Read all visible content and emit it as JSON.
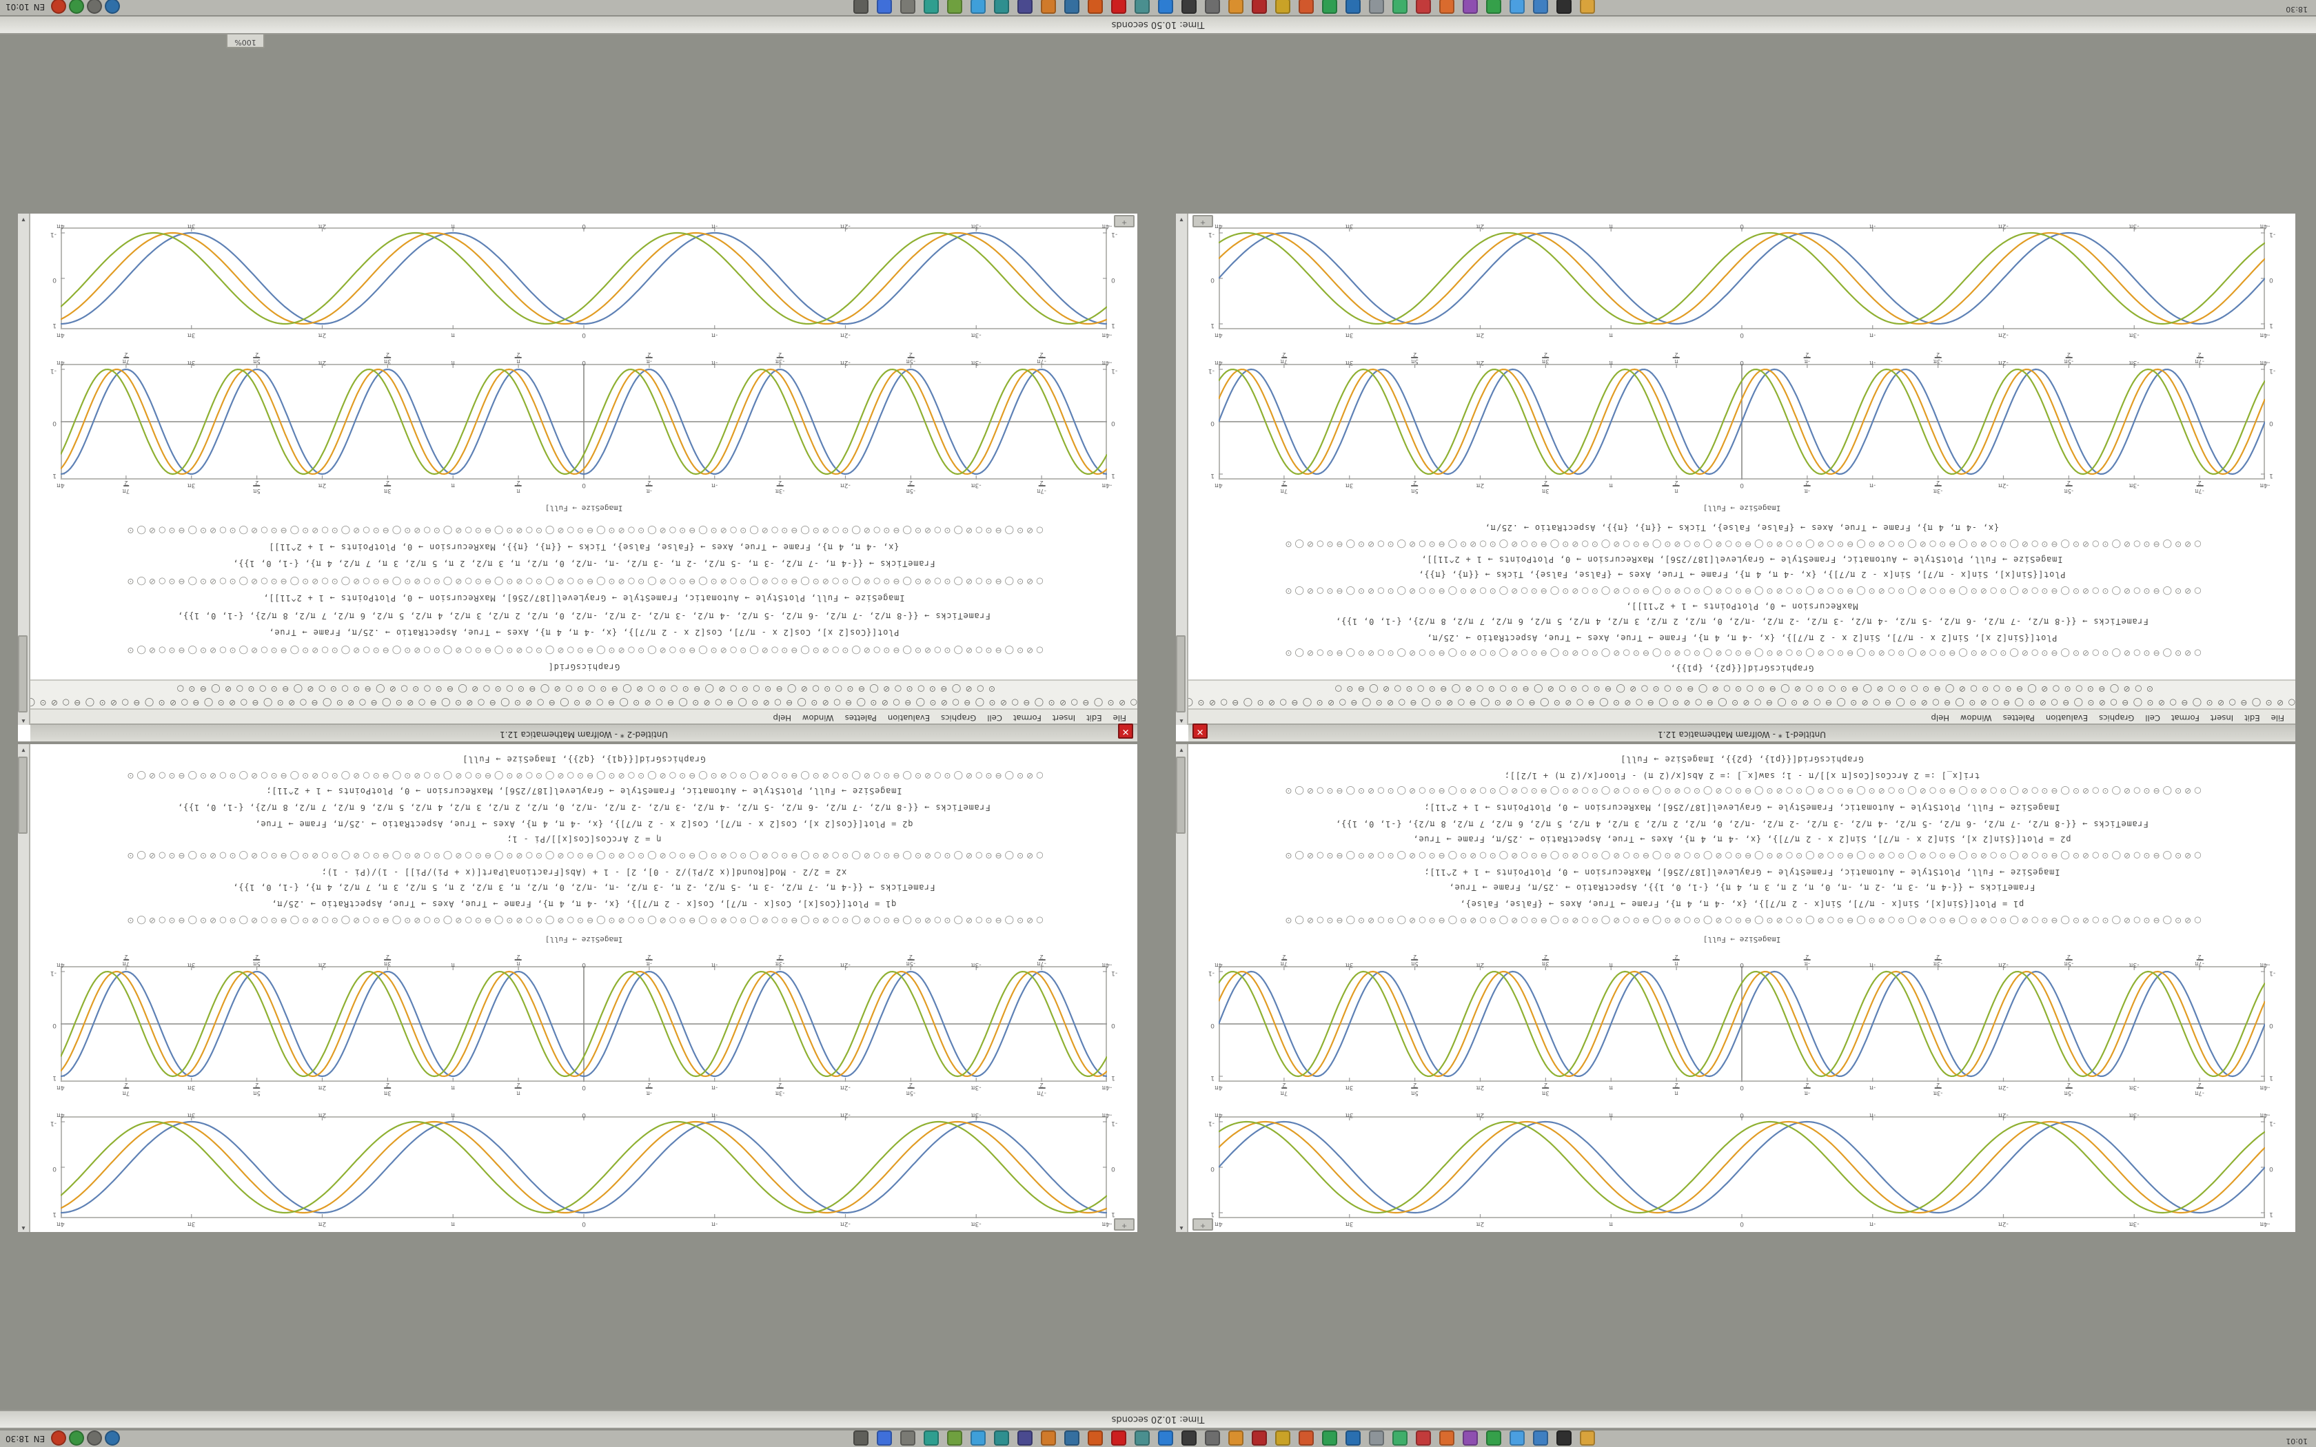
{
  "desktop": {
    "background": "#8f9089",
    "bar_top_text": "Time: 10.20 seconds",
    "bar_bottom_text": "Time: 10.50 seconds",
    "zoom_chip": "100%",
    "top_panel": {
      "left_text": "10:01",
      "lang": "EN",
      "clock": "18:30"
    },
    "bottom_panel": {
      "left_text": "18:30",
      "lang": "EN",
      "clock": "10:01"
    },
    "panel_icons": [
      {
        "name": "files",
        "color": "#d9a33c"
      },
      {
        "name": "terminal",
        "color": "#2f2f2f"
      },
      {
        "name": "browser",
        "color": "#3f7fc1"
      },
      {
        "name": "mail",
        "color": "#4b9fe0"
      },
      {
        "name": "chat",
        "color": "#35a04a"
      },
      {
        "name": "music",
        "color": "#8e4fb0"
      },
      {
        "name": "photos",
        "color": "#d96b2e"
      },
      {
        "name": "video",
        "color": "#c23b3b"
      },
      {
        "name": "editor",
        "color": "#3fae6a"
      },
      {
        "name": "calculator",
        "color": "#8d9499"
      },
      {
        "name": "office-writer",
        "color": "#2a6fb0"
      },
      {
        "name": "office-calc",
        "color": "#2f9e52"
      },
      {
        "name": "office-impress",
        "color": "#d1582c"
      },
      {
        "name": "office-draw",
        "color": "#c9a227"
      },
      {
        "name": "pdf-viewer",
        "color": "#b02a2a"
      },
      {
        "name": "archive-manager",
        "color": "#d98f2e"
      },
      {
        "name": "gimp",
        "color": "#6d6d6d"
      },
      {
        "name": "inkscape",
        "color": "#3b3b3b"
      },
      {
        "name": "code-editor",
        "color": "#2d7dd2"
      },
      {
        "name": "cad",
        "color": "#4a8f8f"
      },
      {
        "name": "wolfram",
        "color": "#cc1f1f"
      },
      {
        "name": "matlab",
        "color": "#d15a1e"
      },
      {
        "name": "python",
        "color": "#356f9f"
      },
      {
        "name": "jupyter",
        "color": "#d07a2a"
      },
      {
        "name": "vm",
        "color": "#4a4a8f"
      },
      {
        "name": "remote-desktop",
        "color": "#2f8f8f"
      },
      {
        "name": "cloud-sync",
        "color": "#3f9fd9"
      },
      {
        "name": "backup",
        "color": "#6fa03f"
      },
      {
        "name": "system-monitor",
        "color": "#2f9e8f"
      },
      {
        "name": "settings",
        "color": "#7a7a74"
      },
      {
        "name": "help",
        "color": "#3f6fd9"
      },
      {
        "name": "trash",
        "color": "#5f5f5a"
      }
    ],
    "tray_icons": [
      {
        "name": "network",
        "color": "#2f6fa8"
      },
      {
        "name": "volume",
        "color": "#6d6d68"
      },
      {
        "name": "keyboard-layout",
        "color": "#3a9441"
      },
      {
        "name": "notifications",
        "color": "#c23b22"
      }
    ]
  },
  "menu": {
    "items": [
      "File",
      "Edit",
      "Insert",
      "Format",
      "Cell",
      "Graphics",
      "Evaluation",
      "Palettes",
      "Window",
      "Help"
    ]
  },
  "windows_chrome": {
    "title_left": "Untitled-1 * - Wolfram Mathematica 12.1",
    "title_right": "Untitled-2 * - Wolfram Mathematica 12.1",
    "close_glyph": "✕"
  },
  "toolbar": {
    "row1": "○⊘⊙◯⊖○⊘⊙◯⊖○⊘⊙◯⊖○⊘⊙◯⊖○⊘⊙◯⊖○⊘⊙◯⊖○⊘⊙◯⊖○⊘⊙◯⊖○⊘⊙◯⊖○⊘⊙◯⊖○⊘⊙◯⊖○⊘⊙◯⊖○⊘⊙◯⊖○⊘⊙◯⊖○⊘⊙◯⊖○⊘⊙◯⊖○⊘⊙◯⊖○⊘⊙◯⊖○⊘⊙◯⊖○⊘⊙◯⊖",
    "row2": "⊙○⊘◯⊖⊙○⊙○⊘◯⊖⊙○⊙○⊘◯⊖⊙○⊙○⊘◯⊖⊙○⊙○⊘◯⊖⊙○⊙○⊘◯⊖⊙○⊙○⊘◯⊖⊙○⊙○⊘◯⊖⊙○⊙○⊘◯⊖⊙○⊙○⊘◯⊖⊙○"
  },
  "notebook": {
    "caption": "ImageSize → Full]",
    "chip_glyph": "+",
    "sym_row": "○⊘⊙◯⊖⊙○⊘◯⊙○⊘⊙◯⊖⊙○⊘◯⊙○⊘⊙◯⊖⊙○⊘◯⊙○⊘⊙◯⊖⊙○⊘◯⊙○⊘⊙◯⊖⊙○⊘◯⊙○⊘⊙◯⊖⊙○⊘◯⊙○⊘⊙◯⊖⊙○⊘◯⊙○⊘⊙◯⊖⊙○⊘◯⊙○⊘⊙◯⊖⊙○⊘◯⊙"
  },
  "code_cells": {
    "left_top": [
      "§SYM§",
      "p1 = Plot[{Sin[x], Sin[x - π/7], Sin[x - 2 π/7]}, {x, -4 π, 4 π}, Frame → True, Axes → {False, False},",
      "FrameTicks → {{-4 π, -3 π, -2 π, -π, 0, π, 2 π, 3 π, 4 π}, {-1, 0, 1}}, AspectRatio → .25/π, Frame → True,",
      "ImageSize → Full, PlotStyle → Automatic, FrameStyle → GrayLevel[187/256], MaxRecursion → 0, PlotPoints → 1 + 2^11];",
      "§SYM§",
      "p2 = Plot[{Sin[2 x], Sin[2 x - π/7], Sin[2 x - 2 π/7]}, {x, -4 π, 4 π}, Axes → True, AspectRatio → .25/π, Frame → True,",
      "FrameTicks → {{-8 π/2, -7 π/2, -6 π/2, -5 π/2, -4 π/2, -3 π/2, -2 π/2, -π/2, 0, π/2, 2 π/2, 3 π/2, 4 π/2, 5 π/2, 6 π/2, 7 π/2, 8 π/2}, {-1, 0, 1}},",
      "ImageSize → Full, PlotStyle → Automatic, FrameStyle → GrayLevel[187/256], MaxRecursion → 0, PlotPoints → 1 + 2^11];",
      "§SYM§",
      "tri[x_] := 2 ArcCos[Cos[π x]]/π - 1;   saw[x_] := 2 Abs[x/(2 π) - Floor[x/(2 π) + 1/2]];",
      "GraphicsGrid[{{p1}, {p2}}, ImageSize → Full]"
    ],
    "left_bottom": [
      "GraphicsGrid[{{p2}, {p1}},",
      "§SYM§",
      "Plot[{Sin[2 x], Sin[2 x - π/7], Sin[2 x - 2 π/7]}, {x, -4 π, 4 π}, Frame → True, Axes → True, AspectRatio → .25/π,",
      "FrameTicks → {{-8 π/2, -7 π/2, -6 π/2, -5 π/2, -4 π/2, -3 π/2, -2 π/2, -π/2, 0, π/2, 2 π/2, 3 π/2, 4 π/2, 5 π/2, 6 π/2, 7 π/2, 8 π/2}, {-1, 0, 1}},",
      "MaxRecursion → 0, PlotPoints → 1 + 2^11]],",
      "§SYM§",
      "Plot[{Sin[x], Sin[x - π/7], Sin[x - 2 π/7]}, {x, -4 π, 4 π}, Frame → True, Axes → {False, False}, Ticks → {{π}, {π}},",
      "ImageSize → Full, PlotStyle → Automatic, FrameStyle → GrayLevel[187/256], MaxRecursion → 0, PlotPoints → 1 + 2^11]],",
      "§SYM§",
      "{x, -4 π, 4 π}, Frame → True, Axes → {False, False}, Ticks → {{π}, {π}}, AspectRatio → .25/π,"
    ],
    "right_top": [
      "§SYM§",
      "q1 = Plot[{Cos[x], Cos[x - π/7], Cos[x - 2 π/7]}, {x, -4 π, 4 π}, Frame → True, Axes → True, AspectRatio → .25/π,",
      "FrameTicks → {{-4 π, -7 π/2, -3 π, -5 π/2, -2 π, -3 π/2, -π, -π/2, 0, π/2, π, 3 π/2, 2 π, 5 π/2, 3 π, 7 π/2, 4 π}, {-1, 0, 1}},",
      "x2 = 2/2 - Mod[Round[(x 2/Pi)/2 - 0], 2] - 1 + (Abs[FractionalPart[(x + Pi)/Pi]] - 1)/(Pi - 1);",
      "§SYM§",
      "η = 2 ArcCos[Cos[x]]/Pi - 1;",
      "q2 = Plot[{Cos[2 x], Cos[2 x - π/7], Cos[2 x - 2 π/7]}, {x, -4 π, 4 π}, Axes → True, AspectRatio → .25/π, Frame → True,",
      "FrameTicks → {{-8 π/2, -7 π/2, -6 π/2, -5 π/2, -4 π/2, -3 π/2, -2 π/2, -π/2, 0, π/2, 2 π/2, 3 π/2, 4 π/2, 5 π/2, 6 π/2, 7 π/2, 8 π/2}, {-1, 0, 1}},",
      "ImageSize → Full, PlotStyle → Automatic, FrameStyle → GrayLevel[187/256], MaxRecursion → 0, PlotPoints → 1 + 2^11];",
      "§SYM§",
      "GraphicsGrid[{{q1}, {q2}}, ImageSize → Full]"
    ],
    "right_bottom": [
      "GraphicsGrid[",
      "§SYM§",
      "Plot[{Cos[2 x], Cos[2 x - π/7], Cos[2 x - 2 π/7]}, {x, -4 π, 4 π}, Axes → True, AspectRatio → .25/π, Frame → True,",
      "FrameTicks → {{-8 π/2, -7 π/2, -6 π/2, -5 π/2, -4 π/2, -3 π/2, -2 π/2, -π/2, 0, π/2, 2 π/2, 3 π/2, 4 π/2, 5 π/2, 6 π/2, 7 π/2, 8 π/2}, {-1, 0, 1}},",
      "ImageSize → Full, PlotStyle → Automatic, FrameStyle → GrayLevel[187/256], MaxRecursion → 0, PlotPoints → 1 + 2^11]],",
      "§SYM§",
      "FrameTicks → {{-4 π, -7 π/2, -3 π, -5 π/2, -2 π, -3 π/2, -π, -π/2, 0, π/2, π, 3 π/2, 2 π, 5 π/2, 3 π, 7 π/2, 4 π}, {-1, 0, 1}},",
      "{x, -4 π, 4 π}, Frame → True, Axes → {False, False}, Ticks → {{π}, {π}}, MaxRecursion → 0, PlotPoints → 1 + 2^11]]",
      "§SYM§"
    ]
  },
  "chart_data": [
    {
      "id": "smooth",
      "type": "line",
      "title": "",
      "xlabel": "",
      "ylabel": "",
      "xlim": [
        -12.5664,
        12.5664
      ],
      "ylim": [
        -1.08,
        1.08
      ],
      "frame": true,
      "axes": false,
      "x_ticks": [
        {
          "v": -12.5664,
          "l": "-4π"
        },
        {
          "v": -9.4248,
          "l": "-3π"
        },
        {
          "v": -6.2832,
          "l": "-2π"
        },
        {
          "v": -3.1416,
          "l": "-π"
        },
        {
          "v": 0,
          "l": "0"
        },
        {
          "v": 3.1416,
          "l": "π"
        },
        {
          "v": 6.2832,
          "l": "2π"
        },
        {
          "v": 9.4248,
          "l": "3π"
        },
        {
          "v": 12.5664,
          "l": "4π"
        }
      ],
      "y_ticks": [
        {
          "v": -1,
          "l": "-1"
        },
        {
          "v": 0,
          "l": "0"
        },
        {
          "v": 1,
          "l": "1"
        }
      ],
      "variants": {
        "sin": [
          {
            "name": "Sin[x]",
            "fn": "sin",
            "freq": 1,
            "phase": 0,
            "color": "#5e81b5"
          },
          {
            "name": "Sin[x - π/7]",
            "fn": "sin",
            "freq": 1,
            "phase": 0.4488,
            "color": "#e19c24"
          },
          {
            "name": "Sin[x - 2π/7]",
            "fn": "sin",
            "freq": 1,
            "phase": 0.8976,
            "color": "#8fb032"
          }
        ],
        "cos": [
          {
            "name": "Cos[x]",
            "fn": "cos",
            "freq": 1,
            "phase": 0,
            "color": "#5e81b5"
          },
          {
            "name": "Cos[x - π/7]",
            "fn": "cos",
            "freq": 1,
            "phase": 0.4488,
            "color": "#e19c24"
          },
          {
            "name": "Cos[x - 2π/7]",
            "fn": "cos",
            "freq": 1,
            "phase": 0.8976,
            "color": "#8fb032"
          }
        ]
      }
    },
    {
      "id": "pi",
      "type": "line",
      "title": "",
      "xlabel": "",
      "ylabel": "",
      "xlim": [
        -12.5664,
        12.5664
      ],
      "ylim": [
        -1.08,
        1.08
      ],
      "frame": true,
      "axes": true,
      "x_ticks": [
        {
          "v": -12.5664,
          "l": "-4π"
        },
        {
          "v": -10.9956,
          "l": "-7π/2"
        },
        {
          "v": -9.4248,
          "l": "-3π"
        },
        {
          "v": -7.854,
          "l": "-5π/2"
        },
        {
          "v": -6.2832,
          "l": "-2π"
        },
        {
          "v": -4.7124,
          "l": "-3π/2"
        },
        {
          "v": -3.1416,
          "l": "-π"
        },
        {
          "v": -1.5708,
          "l": "-π/2"
        },
        {
          "v": 0,
          "l": "0"
        },
        {
          "v": 1.5708,
          "l": "π/2"
        },
        {
          "v": 3.1416,
          "l": "π"
        },
        {
          "v": 4.7124,
          "l": "3π/2"
        },
        {
          "v": 6.2832,
          "l": "2π"
        },
        {
          "v": 7.854,
          "l": "5π/2"
        },
        {
          "v": 9.4248,
          "l": "3π"
        },
        {
          "v": 10.9956,
          "l": "7π/2"
        },
        {
          "v": 12.5664,
          "l": "4π"
        }
      ],
      "y_ticks": [
        {
          "v": -1,
          "l": "-1"
        },
        {
          "v": 0,
          "l": "0"
        },
        {
          "v": 1,
          "l": "1"
        }
      ],
      "variants": {
        "sin": [
          {
            "name": "Sin[2x]",
            "fn": "sin",
            "freq": 2,
            "phase": 0,
            "color": "#5e81b5"
          },
          {
            "name": "Sin[2x - π/7]",
            "fn": "sin",
            "freq": 2,
            "phase": 0.4488,
            "color": "#e19c24"
          },
          {
            "name": "Sin[2x - 2π/7]",
            "fn": "sin",
            "freq": 2,
            "phase": 0.8976,
            "color": "#8fb032"
          }
        ],
        "cos": [
          {
            "name": "Cos[2x]",
            "fn": "cos",
            "freq": 2,
            "phase": 0,
            "color": "#5e81b5"
          },
          {
            "name": "Cos[2x - π/7]",
            "fn": "cos",
            "freq": 2,
            "phase": 0.4488,
            "color": "#e19c24"
          },
          {
            "name": "Cos[2x - 2π/7]",
            "fn": "cos",
            "freq": 2,
            "phase": 0.8976,
            "color": "#8fb032"
          }
        ]
      }
    }
  ]
}
